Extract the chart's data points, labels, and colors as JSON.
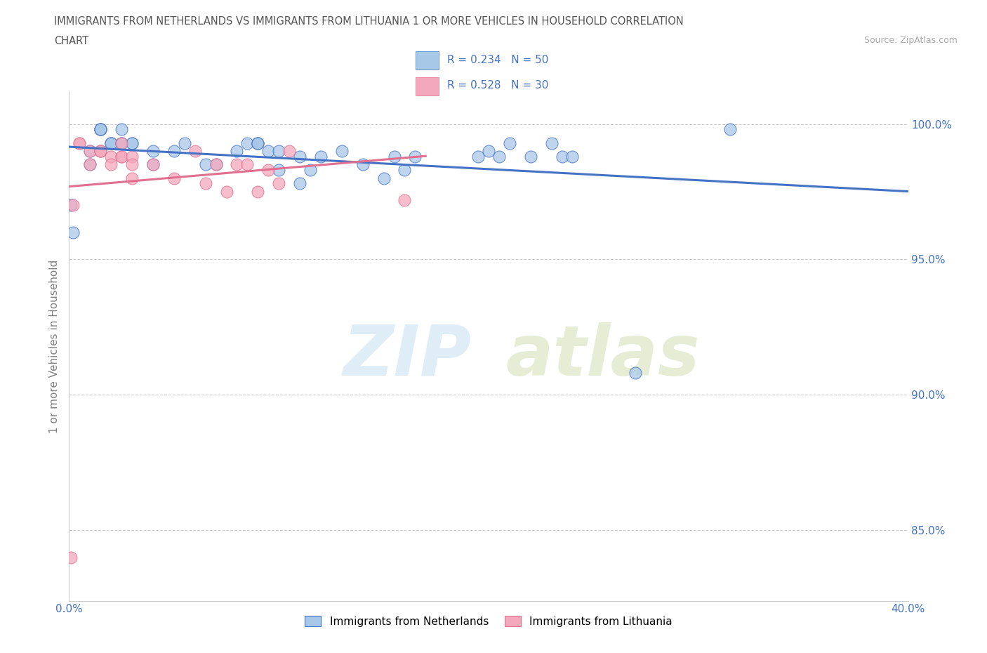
{
  "title_line1": "IMMIGRANTS FROM NETHERLANDS VS IMMIGRANTS FROM LITHUANIA 1 OR MORE VEHICLES IN HOUSEHOLD CORRELATION",
  "title_line2": "CHART",
  "source_text": "Source: ZipAtlas.com",
  "ylabel": "1 or more Vehicles in Household",
  "xmin": 0.0,
  "xmax": 0.4,
  "ymin": 0.824,
  "ymax": 1.012,
  "yticks": [
    0.85,
    0.9,
    0.95,
    1.0
  ],
  "ytick_labels": [
    "85.0%",
    "90.0%",
    "95.0%",
    "100.0%"
  ],
  "xticks": [
    0.0,
    0.05,
    0.1,
    0.15,
    0.2,
    0.25,
    0.3,
    0.35,
    0.4
  ],
  "xtick_labels": [
    "0.0%",
    "",
    "",
    "",
    "",
    "",
    "",
    "",
    "40.0%"
  ],
  "color_netherlands": "#A8C8E8",
  "color_lithuania": "#F4A8BC",
  "color_trend_netherlands": "#4472C4",
  "color_trend_lithuania": "#E07090",
  "watermark_zip": "ZIP",
  "watermark_atlas": "atlas",
  "legend_label1": "Immigrants from Netherlands",
  "legend_label2": "Immigrants from Lithuania",
  "netherlands_x": [
    0.001,
    0.002,
    0.01,
    0.01,
    0.015,
    0.015,
    0.015,
    0.015,
    0.02,
    0.02,
    0.02,
    0.025,
    0.025,
    0.025,
    0.03,
    0.03,
    0.04,
    0.04,
    0.05,
    0.055,
    0.065,
    0.07,
    0.08,
    0.085,
    0.09,
    0.09,
    0.09,
    0.095,
    0.1,
    0.1,
    0.11,
    0.11,
    0.115,
    0.12,
    0.13,
    0.14,
    0.15,
    0.155,
    0.16,
    0.165,
    0.195,
    0.2,
    0.205,
    0.21,
    0.22,
    0.23,
    0.235,
    0.24,
    0.27,
    0.315
  ],
  "netherlands_y": [
    0.97,
    0.96,
    0.99,
    0.985,
    0.998,
    0.998,
    0.998,
    0.998,
    0.993,
    0.993,
    0.993,
    0.998,
    0.993,
    0.993,
    0.993,
    0.993,
    0.985,
    0.99,
    0.99,
    0.993,
    0.985,
    0.985,
    0.99,
    0.993,
    0.993,
    0.993,
    0.993,
    0.99,
    0.983,
    0.99,
    0.978,
    0.988,
    0.983,
    0.988,
    0.99,
    0.985,
    0.98,
    0.988,
    0.983,
    0.988,
    0.988,
    0.99,
    0.988,
    0.993,
    0.988,
    0.993,
    0.988,
    0.988,
    0.908,
    0.998
  ],
  "lithuania_x": [
    0.001,
    0.002,
    0.005,
    0.005,
    0.01,
    0.01,
    0.015,
    0.015,
    0.015,
    0.02,
    0.02,
    0.025,
    0.025,
    0.025,
    0.03,
    0.03,
    0.03,
    0.04,
    0.05,
    0.06,
    0.065,
    0.07,
    0.075,
    0.08,
    0.085,
    0.09,
    0.095,
    0.1,
    0.105,
    0.16
  ],
  "lithuania_y": [
    0.84,
    0.97,
    0.993,
    0.993,
    0.99,
    0.985,
    0.99,
    0.99,
    0.99,
    0.988,
    0.985,
    0.993,
    0.988,
    0.988,
    0.988,
    0.985,
    0.98,
    0.985,
    0.98,
    0.99,
    0.978,
    0.985,
    0.975,
    0.985,
    0.985,
    0.975,
    0.983,
    0.978,
    0.99,
    0.972
  ]
}
